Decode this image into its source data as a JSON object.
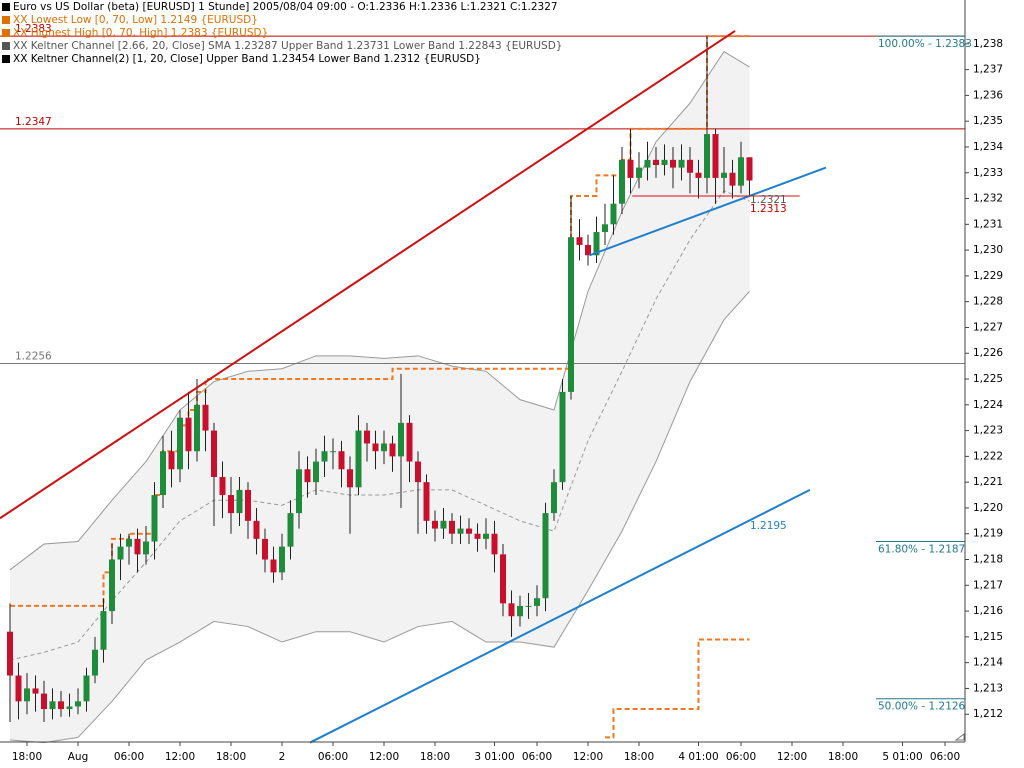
{
  "chart_data": {
    "type": "candlestick",
    "legend": [
      {
        "text": "Euro vs US Dollar (beta) [EURUSD]  1 Stunde] 2005/08/04 09:00 - O:1.2336 H:1.2336 L:1.2321 C:1.2327",
        "color": "#000000"
      },
      {
        "text": "XX Lowest Low [0, 70, Low] 1.2149 {EURUSD}",
        "color": "#e07000"
      },
      {
        "text": "XX Highest High [0, 70, High] 1.2383 {EURUSD}",
        "color": "#e07000"
      },
      {
        "text": "XX Keltner Channel [2.66, 20, Close] SMA 1.23287 Upper Band 1.23731 Lower Band 1.22843 {EURUSD}",
        "color": "#555555"
      },
      {
        "text": "XX Keltner Channel(2) [1, 20, Close] Upper Band 1.23454 Lower Band 1.2312 {EURUSD}",
        "color": "#000000"
      }
    ],
    "categories": [
      null,
      null,
      "18:00",
      null,
      null,
      null,
      null,
      null,
      "Aug",
      null,
      null,
      null,
      null,
      null,
      "06:00",
      null,
      null,
      null,
      null,
      null,
      "12:00",
      null,
      null,
      null,
      null,
      null,
      "18:00",
      null,
      null,
      null,
      null,
      null,
      "2",
      null,
      null,
      null,
      null,
      null,
      "06:00",
      null,
      null,
      null,
      null,
      null,
      "12:00",
      null,
      null,
      null,
      null,
      null,
      "18:00",
      null,
      null,
      null,
      null,
      null,
      null,
      "3 01:00",
      null,
      null,
      null,
      null,
      "06:00",
      null,
      null,
      null,
      null,
      null,
      "12:00",
      null,
      null,
      null,
      null,
      null,
      "18:00",
      null,
      null,
      null,
      null,
      null,
      null,
      "4 01:00",
      null,
      null,
      null,
      null,
      "06:00",
      null,
      null,
      null,
      null,
      null,
      "12:00",
      null,
      null,
      null,
      null,
      null,
      "18:00",
      null,
      null,
      null,
      null,
      null,
      null,
      "5 01:00",
      null,
      null,
      null,
      null,
      "06:00",
      null
    ],
    "open": [
      1.2152,
      1.2135,
      1.2125,
      1.213,
      1.2128,
      1.2122,
      1.2125,
      1.2122,
      1.2123,
      1.2125,
      1.2135,
      1.2145,
      1.216,
      1.218,
      1.2185,
      1.2188,
      1.2182,
      1.2187,
      1.2205,
      1.2222,
      1.2215,
      1.2235,
      1.2222,
      1.224,
      1.223,
      1.2212,
      1.2205,
      1.2198,
      1.2207,
      1.2195,
      1.2188,
      1.218,
      1.2175,
      1.2185,
      1.2198,
      1.2215,
      1.221,
      1.2218,
      1.2222,
      1.2222,
      1.2215,
      1.2208,
      1.223,
      1.2225,
      1.2222,
      1.2225,
      1.222,
      1.2233,
      1.2218,
      1.221,
      1.2195,
      1.2192,
      1.2195,
      1.219,
      1.2192,
      1.219,
      1.2188,
      1.219,
      1.2182,
      1.2163,
      1.2158,
      1.2162,
      1.2162,
      1.2165,
      1.2198,
      1.221,
      1.2245,
      1.2305,
      1.2302,
      1.2298,
      1.2307,
      1.231,
      1.2318,
      1.2335,
      1.2328,
      1.2332,
      1.2335,
      1.2333,
      1.2335,
      1.2332,
      1.2335,
      1.233,
      1.2328,
      1.2345,
      1.2328,
      1.233,
      1.2325,
      1.2336,
      null,
      null,
      null,
      null,
      null,
      null,
      null,
      null,
      null,
      null,
      null,
      null,
      null,
      null,
      null,
      null,
      null,
      null,
      null,
      null,
      null,
      null,
      null,
      null
    ],
    "high": [
      1.2163,
      1.214,
      1.2136,
      1.2135,
      1.2133,
      1.213,
      1.2129,
      1.2128,
      1.213,
      1.2138,
      1.215,
      1.2165,
      1.2186,
      1.219,
      1.219,
      1.2192,
      1.2193,
      1.221,
      1.2228,
      1.223,
      1.2238,
      1.2245,
      1.225,
      1.2246,
      1.2233,
      1.2218,
      1.2212,
      1.2212,
      1.221,
      1.22,
      1.2192,
      1.2185,
      1.219,
      1.2203,
      1.2222,
      1.222,
      1.2223,
      1.2228,
      1.2227,
      1.2226,
      1.222,
      1.2236,
      1.2233,
      1.223,
      1.223,
      1.2228,
      1.2252,
      1.2236,
      1.2222,
      1.2213,
      1.2199,
      1.22,
      1.2198,
      1.2197,
      1.2196,
      1.2194,
      1.2196,
      1.2195,
      1.2186,
      1.2168,
      1.2166,
      1.2167,
      1.217,
      1.2202,
      1.2215,
      1.225,
      1.2321,
      1.2312,
      1.2306,
      1.2313,
      1.2318,
      1.2329,
      1.234,
      1.2347,
      1.2338,
      1.2342,
      1.234,
      1.2341,
      1.234,
      1.2341,
      1.234,
      1.2335,
      1.2383,
      1.2347,
      1.234,
      1.2335,
      1.2342,
      1.2336,
      null,
      null,
      null,
      null,
      null,
      null,
      null,
      null,
      null,
      null,
      null,
      null,
      null,
      null,
      null,
      null,
      null,
      null,
      null,
      null,
      null,
      null,
      null,
      null
    ],
    "low": [
      1.2117,
      1.2118,
      1.212,
      1.2121,
      1.2117,
      1.2118,
      1.2119,
      1.2119,
      1.212,
      1.2121,
      1.2132,
      1.214,
      1.2155,
      1.2172,
      1.2178,
      1.2175,
      1.2178,
      1.218,
      1.22,
      1.2208,
      1.221,
      1.2215,
      1.2218,
      1.2222,
      1.2193,
      1.2196,
      1.219,
      1.2193,
      1.2188,
      1.2182,
      1.2175,
      1.2171,
      1.2172,
      1.218,
      1.2192,
      1.2204,
      1.2205,
      1.2212,
      1.2215,
      1.2208,
      1.219,
      1.2205,
      1.2218,
      1.2215,
      1.2217,
      1.2214,
      1.22,
      1.221,
      1.219,
      1.219,
      1.2187,
      1.2188,
      1.2186,
      1.2186,
      1.2186,
      1.2183,
      1.2184,
      1.2175,
      1.2158,
      1.215,
      1.2154,
      1.2157,
      1.2158,
      1.216,
      1.2195,
      1.2207,
      1.2242,
      1.2296,
      1.2294,
      1.2295,
      1.2302,
      1.2306,
      1.2314,
      1.2322,
      1.2324,
      1.2327,
      1.2328,
      1.2329,
      1.2324,
      1.2327,
      1.2322,
      1.232,
      1.2322,
      1.2318,
      1.2322,
      1.232,
      1.2322,
      1.2321,
      null,
      null,
      null,
      null,
      null,
      null,
      null,
      null,
      null,
      null,
      null,
      null,
      null,
      null,
      null,
      null,
      null,
      null,
      null,
      null,
      null,
      null,
      null,
      null
    ],
    "close": [
      1.2135,
      1.2125,
      1.213,
      1.2128,
      1.2122,
      1.2125,
      1.2122,
      1.2123,
      1.2125,
      1.2135,
      1.2145,
      1.216,
      1.218,
      1.2185,
      1.2188,
      1.2182,
      1.2187,
      1.2205,
      1.2222,
      1.2215,
      1.2235,
      1.2222,
      1.224,
      1.223,
      1.2212,
      1.2205,
      1.2198,
      1.2207,
      1.2195,
      1.2188,
      1.218,
      1.2175,
      1.2185,
      1.2198,
      1.2215,
      1.221,
      1.2218,
      1.2222,
      1.2222,
      1.2215,
      1.2208,
      1.223,
      1.2225,
      1.2222,
      1.2225,
      1.222,
      1.2233,
      1.2218,
      1.221,
      1.2195,
      1.2192,
      1.2195,
      1.219,
      1.2192,
      1.219,
      1.2188,
      1.219,
      1.2182,
      1.2163,
      1.2158,
      1.2162,
      1.2162,
      1.2165,
      1.2198,
      1.221,
      1.2245,
      1.2305,
      1.2302,
      1.2298,
      1.2307,
      1.231,
      1.2318,
      1.2335,
      1.2328,
      1.2332,
      1.2335,
      1.2333,
      1.2335,
      1.2332,
      1.2335,
      1.233,
      1.2328,
      1.2345,
      1.2328,
      1.233,
      1.2325,
      1.2336,
      1.2327,
      null,
      null,
      null,
      null,
      null,
      null,
      null,
      null,
      null,
      null,
      null,
      null,
      null,
      null,
      null,
      null,
      null,
      null,
      null,
      null,
      null,
      null,
      null,
      null
    ],
    "up_color": "#1e8c3a",
    "down_color": "#c8102e",
    "wick_color": "#222222",
    "ylim": [
      1.211,
      1.2397
    ],
    "yticks": [
      {
        "value": 1.212,
        "label": "1,212"
      },
      {
        "value": 1.213,
        "label": "1,213"
      },
      {
        "value": 1.214,
        "label": "1,214"
      },
      {
        "value": 1.215,
        "label": "1,215"
      },
      {
        "value": 1.216,
        "label": "1,216"
      },
      {
        "value": 1.217,
        "label": "1,217"
      },
      {
        "value": 1.218,
        "label": "1,218"
      },
      {
        "value": 1.219,
        "label": "1,219"
      },
      {
        "value": 1.22,
        "label": "1,220"
      },
      {
        "value": 1.221,
        "label": "1,221"
      },
      {
        "value": 1.222,
        "label": "1,222"
      },
      {
        "value": 1.223,
        "label": "1,223"
      },
      {
        "value": 1.224,
        "label": "1,224"
      },
      {
        "value": 1.225,
        "label": "1,225"
      },
      {
        "value": 1.226,
        "label": "1,226"
      },
      {
        "value": 1.227,
        "label": "1,227"
      },
      {
        "value": 1.228,
        "label": "1,228"
      },
      {
        "value": 1.229,
        "label": "1,229"
      },
      {
        "value": 1.23,
        "label": "1,230"
      },
      {
        "value": 1.231,
        "label": "1,231"
      },
      {
        "value": 1.232,
        "label": "1,232"
      },
      {
        "value": 1.233,
        "label": "1,233"
      },
      {
        "value": 1.234,
        "label": "1,234"
      },
      {
        "value": 1.235,
        "label": "1,235"
      },
      {
        "value": 1.236,
        "label": "1,236"
      },
      {
        "value": 1.237,
        "label": "1,237"
      },
      {
        "value": 1.238,
        "label": "1,238"
      }
    ],
    "bands": {
      "color": "#999999",
      "fill": "#f2f2f2",
      "x": [
        0,
        4,
        8,
        12,
        16,
        20,
        24,
        28,
        32,
        36,
        40,
        44,
        48,
        52,
        56,
        60,
        64,
        68,
        72,
        76,
        80,
        84,
        87
      ],
      "upper": [
        1.2176,
        1.2186,
        1.2187,
        1.2203,
        1.2218,
        1.2238,
        1.2249,
        1.2253,
        1.2254,
        1.2259,
        1.2259,
        1.2258,
        1.2259,
        1.2255,
        1.2253,
        1.2242,
        1.2238,
        1.2284,
        1.2315,
        1.2342,
        1.2357,
        1.2377,
        1.2371
      ],
      "middle": [
        1.2141,
        1.2144,
        1.2148,
        1.2164,
        1.2179,
        1.2195,
        1.2203,
        1.2203,
        1.2201,
        1.2207,
        1.2205,
        1.2205,
        1.2207,
        1.2207,
        1.2201,
        1.2195,
        1.2191,
        1.2226,
        1.2253,
        1.2281,
        1.2304,
        1.2323,
        1.2319
      ],
      "lower": [
        1.211,
        1.2109,
        1.2111,
        1.2125,
        1.2141,
        1.2148,
        1.2156,
        1.2154,
        1.2148,
        1.2152,
        1.2152,
        1.2148,
        1.2154,
        1.2156,
        1.2148,
        1.2148,
        1.2146,
        1.2168,
        1.2191,
        1.2218,
        1.2249,
        1.2273,
        1.2284
      ]
    },
    "steps": [
      {
        "color": "#f07820",
        "x": [
          0,
          11,
          12,
          14,
          17,
          18,
          20,
          21,
          22,
          23,
          45,
          66,
          69,
          72,
          73,
          82,
          87
        ],
        "values": [
          1.2162,
          1.2175,
          1.2188,
          1.219,
          1.2205,
          1.2222,
          1.2232,
          1.2238,
          1.2245,
          1.225,
          1.2254,
          1.2321,
          1.2329,
          1.2335,
          1.2347,
          1.2383,
          1.2383
        ]
      },
      {
        "color": "#f07820",
        "x": [
          70,
          71,
          80,
          81,
          87
        ],
        "values": [
          1.2111,
          1.2122,
          1.2122,
          1.2149,
          1.2149
        ]
      }
    ],
    "levels": [
      {
        "value": 1.2383,
        "label": "1.2383",
        "color": "#c00000"
      },
      {
        "value": 1.2347,
        "label": "1.2347",
        "color": "#c00000"
      },
      {
        "value": 1.2256,
        "label": "1.2256",
        "color": "#777777"
      }
    ],
    "fibo": {
      "color": "#1f7a8c",
      "levels": [
        {
          "value": 1.2383,
          "label": "100.00% - 1.2383"
        },
        {
          "value": 1.2187,
          "label": "61.80% - 1.2187"
        },
        {
          "value": 1.2126,
          "label": "50.00% - 1.2126"
        }
      ]
    },
    "trendlines": [
      {
        "color": "#d01010",
        "width": 2,
        "x": [
          -1.18,
          85.3
        ],
        "values": [
          1.2196,
          1.2385
        ]
      },
      {
        "color": "#1f7fcf",
        "width": 2,
        "x": [
          35.3,
          94.1
        ],
        "values": [
          1.2109,
          1.2207
        ]
      },
      {
        "color": "#1f7fcf",
        "width": 2,
        "x": [
          68.2,
          96
        ],
        "values": [
          1.2298,
          1.2332
        ]
      },
      {
        "color": "#d01010",
        "width": 1,
        "x": [
          73.2,
          92.9
        ],
        "values": [
          1.2321,
          1.2321
        ]
      }
    ],
    "annotations": [
      "1.2195",
      "1.2321",
      "1.2313"
    ]
  }
}
